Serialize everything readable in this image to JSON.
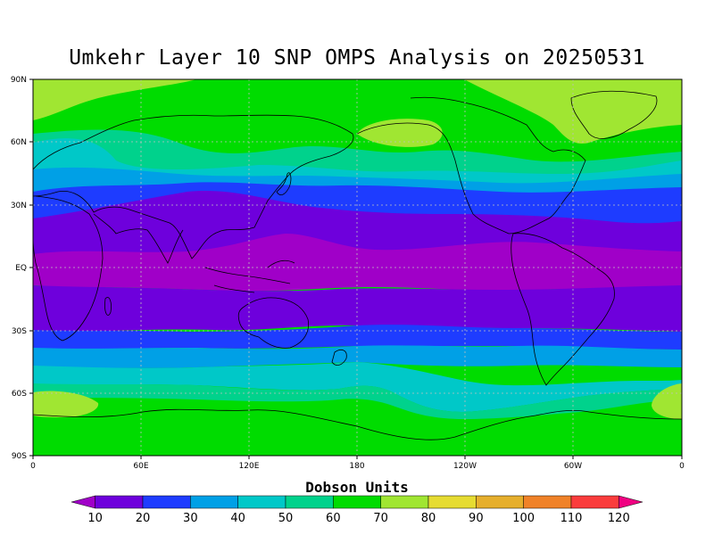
{
  "title": "Umkehr Layer 10 SNP OMPS Analysis on 20250531",
  "map": {
    "lat_labels": [
      "90N",
      "60N",
      "30N",
      "EQ",
      "30S",
      "60S",
      "90S"
    ],
    "lon_labels": [
      "0",
      "60E",
      "120E",
      "180",
      "120W",
      "60W",
      "0"
    ],
    "contour_levels": [
      10,
      20,
      30,
      40,
      50,
      60,
      70,
      80,
      90,
      100,
      110,
      120
    ]
  },
  "colorbar": {
    "title": "Dobson Units",
    "labels": [
      "10",
      "20",
      "30",
      "40",
      "50",
      "60",
      "70",
      "80",
      "90",
      "100",
      "110",
      "120"
    ],
    "colors": [
      "#a000c8",
      "#6e00dc",
      "#1e3cff",
      "#00a0e6",
      "#00c8c8",
      "#00d28c",
      "#00dc00",
      "#a0e632",
      "#e6dc32",
      "#e6af2d",
      "#f08228",
      "#fa3c3c",
      "#f00082"
    ]
  }
}
